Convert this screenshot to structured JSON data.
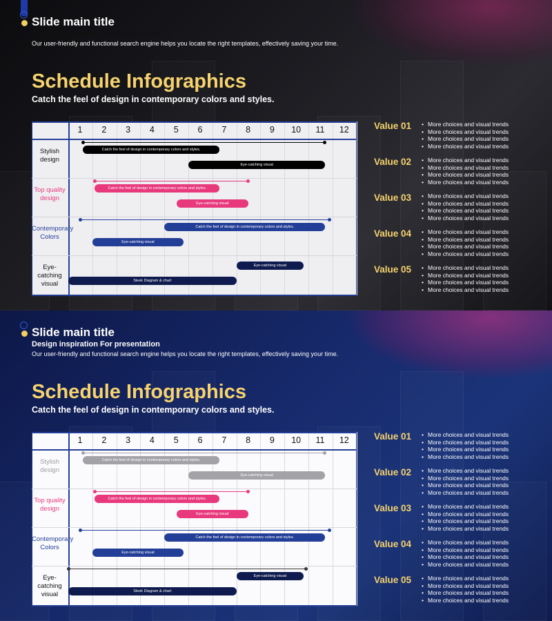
{
  "colors": {
    "accent_yellow": "#f6d36e",
    "navy": "#233e97",
    "pink": "#e8397c",
    "dark_navy": "#0f1b4e",
    "gray": "#9d9da1",
    "black": "#000000"
  },
  "header": {
    "main_title": "Slide main title",
    "subtitle": "Design inspiration For presentation",
    "description": "Our user-friendly and functional search engine helps you locate the right templates, effectively saving your time."
  },
  "heading": {
    "title": "Schedule Infographics",
    "tagline": "Catch the feel of design in contemporary colors and styles."
  },
  "schedule": {
    "months": [
      "1",
      "2",
      "3",
      "4",
      "5",
      "6",
      "7",
      "8",
      "9",
      "10",
      "11",
      "12"
    ],
    "rows": [
      {
        "label": "Stylish design",
        "bars": [
          {
            "text": "Catch the feel of design in contemporary colors and styles.",
            "start": 1.6,
            "end": 7.3
          },
          {
            "text": "Eye-catching visual",
            "start": 6.0,
            "end": 11.7
          }
        ],
        "marker": [
          1.6,
          11.7
        ]
      },
      {
        "label": "Top quality design",
        "bars": [
          {
            "text": "Catch the feel of design in contemporary colors and styles.",
            "start": 2.1,
            "end": 7.3
          },
          {
            "text": "Eye-catching visual",
            "start": 5.5,
            "end": 8.5
          }
        ],
        "marker": [
          2.1,
          8.5
        ]
      },
      {
        "label": "Contemporary Colors",
        "bars": [
          {
            "text": "Catch the feel of design in contemporary colors and styles.",
            "start": 5.0,
            "end": 11.7
          },
          {
            "text": "Eye-catching visual",
            "start": 2.0,
            "end": 5.8
          }
        ],
        "marker": [
          1.5,
          11.9
        ]
      },
      {
        "label": "Eye-catching visual",
        "bars": [
          {
            "text": "Eye-catching visual",
            "start": 8.0,
            "end": 10.8
          },
          {
            "text": "Sleek Diagram & chart",
            "start": 1.0,
            "end": 8.0
          }
        ],
        "marker": [
          1.0,
          10.9
        ]
      }
    ]
  },
  "values": [
    {
      "title": "Value 01",
      "items": [
        "More choices and visual trends",
        "More choices and visual trends",
        "More choices and visual trends",
        "More choices and visual trends"
      ]
    },
    {
      "title": "Value 02",
      "items": [
        "More choices and visual trends",
        "More choices and visual trends",
        "More choices and visual trends",
        "More choices and visual trends"
      ]
    },
    {
      "title": "Value 03",
      "items": [
        "More choices and visual trends",
        "More choices and visual trends",
        "More choices and visual trends",
        "More choices and visual trends"
      ]
    },
    {
      "title": "Value 04",
      "items": [
        "More choices and visual trends",
        "More choices and visual trends",
        "More choices and visual trends",
        "More choices and visual trends"
      ]
    },
    {
      "title": "Value 05",
      "items": [
        "More choices and visual trends",
        "More choices and visual trends",
        "More choices and visual trends",
        "More choices and visual trends"
      ]
    }
  ],
  "icons": {
    "ring": "ring-icon",
    "dot": "bullet-dot-icon"
  }
}
